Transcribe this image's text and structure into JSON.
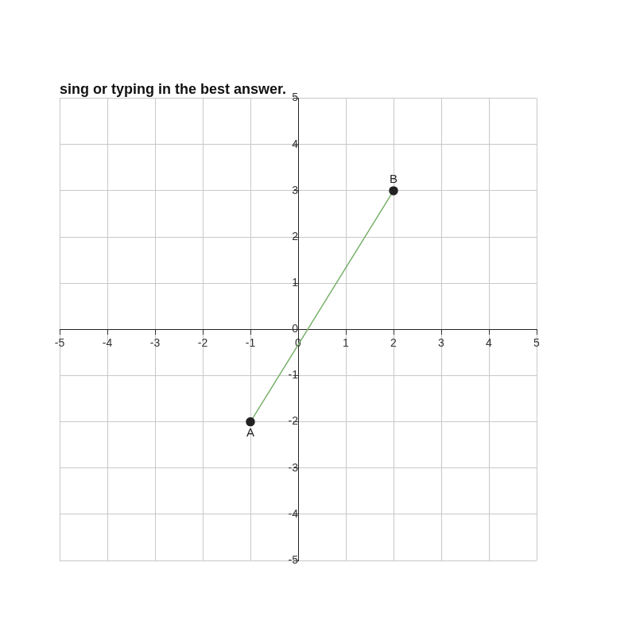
{
  "chart_data": {
    "type": "line",
    "title": "sing or typing in the best answer.",
    "x": [
      -1,
      2
    ],
    "values": [
      -2,
      3
    ],
    "point_labels": [
      "A",
      "B"
    ],
    "color": "#78b06a",
    "marker": "circle",
    "xlim": [
      -5,
      5
    ],
    "xticks": [
      -5,
      -4,
      -3,
      -2,
      -1,
      0,
      1,
      2,
      3,
      4,
      5
    ],
    "ylim": [
      -5,
      5
    ],
    "yticks": [
      -5,
      -4,
      -3,
      -2,
      -1,
      0,
      1,
      2,
      3,
      4,
      5
    ],
    "grid": true
  }
}
